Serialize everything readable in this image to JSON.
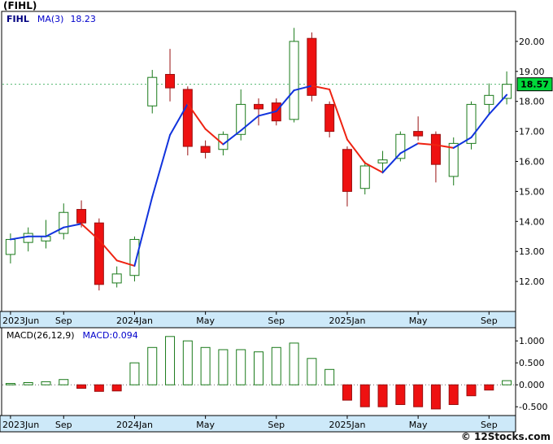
{
  "title": "(FIHL)",
  "legend": {
    "symbol": "FIHL",
    "ma_label": "MA(3)",
    "ma_value": "18.23"
  },
  "macd_legend": {
    "label": "MACD(26,12,9)",
    "value_label": "MACD:0.094"
  },
  "price_badge": {
    "text": "18.57",
    "value": 18.57
  },
  "watermark": "© 12Stocks.com",
  "colors": {
    "up_fill": "#ffffff",
    "up_border": "#1a7a1a",
    "down_fill": "#ee1111",
    "down_border": "#991111",
    "ma_up": "#1133dd",
    "ma_down": "#ee2211",
    "band_bg": "#cde9f9",
    "badge_bg": "#00d93a",
    "axis_text": "#000000",
    "frame": "#000000",
    "last_price_line": "#33aa55",
    "zero_line": "#666666"
  },
  "price_axis": {
    "tick_labels": [
      "20.00",
      "19.00",
      "18.00",
      "17.00",
      "16.00",
      "15.00",
      "14.00",
      "13.00",
      "12.00"
    ],
    "tick_values": [
      20,
      19,
      18,
      17,
      16,
      15,
      14,
      13,
      12
    ],
    "min": 11.0,
    "max": 21.0
  },
  "macd_axis": {
    "tick_labels": [
      "1.000",
      "0.500",
      "0.000",
      "-0.500"
    ],
    "tick_values": [
      1.0,
      0.5,
      0.0,
      -0.5
    ],
    "min": -0.7,
    "max": 1.3
  },
  "x_axis_labels": [
    {
      "text": "2023Jun",
      "index": 0
    },
    {
      "text": "Sep",
      "index": 3
    },
    {
      "text": "2024Jan",
      "index": 7
    },
    {
      "text": "May",
      "index": 11
    },
    {
      "text": "Sep",
      "index": 15
    },
    {
      "text": "2025Jan",
      "index": 19
    },
    {
      "text": "May",
      "index": 23
    },
    {
      "text": "Sep",
      "index": 27
    }
  ],
  "chart_data": [
    {
      "type": "candlestick",
      "title": "FIHL monthly price with MA(3)",
      "x": [
        "2023-06",
        "2023-07",
        "2023-08",
        "2023-09",
        "2023-10",
        "2023-11",
        "2023-12",
        "2024-01",
        "2024-02",
        "2024-03",
        "2024-04",
        "2024-05",
        "2024-06",
        "2024-07",
        "2024-08",
        "2024-09",
        "2024-10",
        "2024-11",
        "2024-12",
        "2025-01",
        "2025-02",
        "2025-03",
        "2025-04",
        "2025-05",
        "2025-06",
        "2025-07",
        "2025-08",
        "2025-09",
        "2025-10"
      ],
      "open": [
        12.9,
        13.3,
        13.35,
        13.6,
        14.4,
        13.95,
        11.95,
        12.2,
        17.85,
        18.9,
        18.4,
        16.5,
        16.4,
        16.9,
        17.9,
        17.95,
        17.4,
        20.1,
        17.9,
        16.4,
        15.1,
        15.95,
        16.1,
        17.0,
        16.9,
        15.5,
        16.6,
        17.9,
        18.1
      ],
      "high": [
        13.6,
        13.8,
        14.05,
        14.6,
        14.7,
        14.1,
        12.5,
        13.5,
        19.05,
        19.75,
        18.5,
        16.7,
        17.0,
        18.4,
        18.1,
        18.1,
        20.45,
        20.3,
        18.0,
        16.5,
        16.0,
        16.35,
        17.0,
        17.5,
        17.0,
        16.8,
        18.0,
        18.6,
        19.0
      ],
      "low": [
        12.6,
        13.0,
        13.1,
        13.4,
        13.8,
        11.7,
        11.8,
        12.0,
        17.6,
        18.0,
        16.2,
        16.1,
        16.2,
        16.7,
        17.2,
        17.2,
        17.3,
        18.0,
        16.8,
        14.5,
        14.9,
        15.6,
        16.0,
        16.7,
        15.3,
        15.2,
        16.4,
        17.6,
        17.9
      ],
      "close": [
        13.4,
        13.6,
        13.5,
        14.3,
        13.95,
        11.9,
        12.25,
        13.4,
        18.8,
        18.45,
        16.5,
        16.3,
        16.9,
        17.9,
        17.75,
        17.35,
        20.0,
        18.2,
        17.0,
        15.0,
        15.85,
        16.05,
        16.9,
        16.85,
        15.9,
        16.6,
        17.9,
        18.2,
        18.57
      ],
      "ma3": [
        13.4,
        13.5,
        13.5,
        13.8,
        13.92,
        13.38,
        12.7,
        12.52,
        14.82,
        16.88,
        17.92,
        17.08,
        16.57,
        17.03,
        17.52,
        17.67,
        18.37,
        18.52,
        18.4,
        16.73,
        15.95,
        15.63,
        16.27,
        16.6,
        16.55,
        16.45,
        16.8,
        17.57,
        18.22
      ],
      "ylim": [
        11.0,
        21.0
      ],
      "last_price": 18.57
    },
    {
      "type": "bar",
      "title": "MACD(26,12,9) histogram",
      "x": [
        "2023-06",
        "2023-07",
        "2023-08",
        "2023-09",
        "2023-10",
        "2023-11",
        "2023-12",
        "2024-01",
        "2024-02",
        "2024-03",
        "2024-04",
        "2024-05",
        "2024-06",
        "2024-07",
        "2024-08",
        "2024-09",
        "2024-10",
        "2024-11",
        "2024-12",
        "2025-01",
        "2025-02",
        "2025-03",
        "2025-04",
        "2025-05",
        "2025-06",
        "2025-07",
        "2025-08",
        "2025-09",
        "2025-10"
      ],
      "values": [
        0.03,
        0.05,
        0.07,
        0.12,
        -0.08,
        -0.15,
        -0.14,
        0.5,
        0.85,
        1.1,
        1.0,
        0.85,
        0.8,
        0.8,
        0.75,
        0.85,
        0.95,
        0.6,
        0.35,
        -0.35,
        -0.5,
        -0.5,
        -0.45,
        -0.5,
        -0.55,
        -0.45,
        -0.25,
        -0.12,
        0.094
      ],
      "ylim": [
        -0.7,
        1.3
      ],
      "last_value": 0.094
    }
  ]
}
